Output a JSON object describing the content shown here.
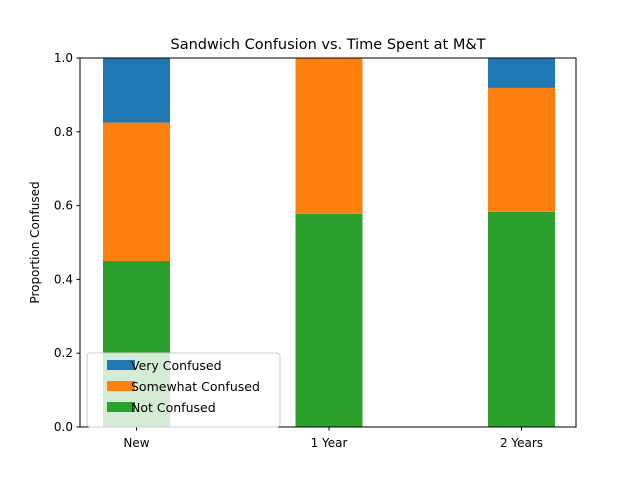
{
  "chart_data": {
    "type": "bar",
    "stacked": true,
    "title": "Sandwich Confusion vs. Time Spent at M&T",
    "xlabel": "",
    "ylabel": "Proportion Confused",
    "ylim": [
      0,
      1.0
    ],
    "yticks": [
      "0.0",
      "0.2",
      "0.4",
      "0.6",
      "0.8",
      "1.0"
    ],
    "categories": [
      "New",
      "1 Year",
      "2 Years"
    ],
    "series": [
      {
        "name": "Not Confused",
        "color": "#2ca02c",
        "values": [
          0.45,
          0.578,
          0.583
        ]
      },
      {
        "name": "Somewhat Confused",
        "color": "#ff7f0e",
        "values": [
          0.375,
          0.422,
          0.336
        ]
      },
      {
        "name": "Very Confused",
        "color": "#1f77b4",
        "values": [
          0.175,
          0.0,
          0.081
        ]
      }
    ],
    "legend_order": [
      "Very Confused",
      "Somewhat Confused",
      "Not Confused"
    ],
    "legend_position": "lower-left",
    "grid": false
  }
}
